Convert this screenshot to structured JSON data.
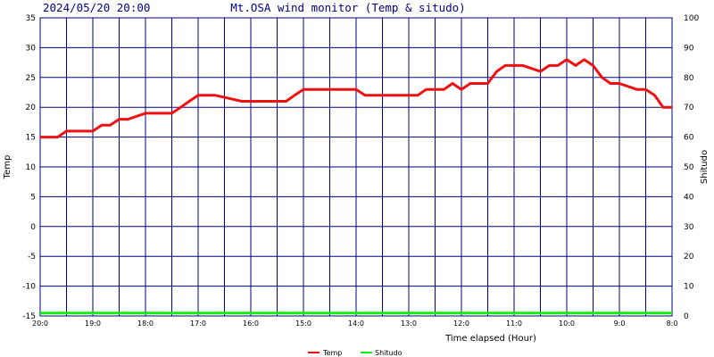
{
  "header": {
    "timestamp": "2024/05/20 20:00",
    "title": "Mt.OSA wind monitor (Temp & situdo)"
  },
  "chart_data": {
    "type": "line",
    "grid": true,
    "legend_position": "bottom",
    "xlabel": "Time elapsed (Hour)",
    "ylabel_left": "Temp",
    "ylabel_right": "Shitudo",
    "ylim_left": [
      -15,
      35
    ],
    "ylim_right": [
      0,
      100
    ],
    "yticks_left": [
      "35",
      "30",
      "25",
      "20",
      "15",
      "10",
      "5",
      "0",
      "-5",
      "-10",
      "-15"
    ],
    "yticks_right": [
      "100",
      "90",
      "80",
      "70",
      "60",
      "50",
      "40",
      "30",
      "20",
      "10",
      "0"
    ],
    "x_range_hours": [
      0,
      12
    ],
    "xticks": [
      {
        "h": 0,
        "label": "20:0"
      },
      {
        "h": 1,
        "label": "19:0"
      },
      {
        "h": 2,
        "label": "18:0"
      },
      {
        "h": 3,
        "label": "17:0"
      },
      {
        "h": 4,
        "label": "16:0"
      },
      {
        "h": 5,
        "label": "15:0"
      },
      {
        "h": 6,
        "label": "14:0"
      },
      {
        "h": 7,
        "label": "13:0"
      },
      {
        "h": 8,
        "label": "12:0"
      },
      {
        "h": 9,
        "label": "11:0"
      },
      {
        "h": 10,
        "label": "10:0"
      },
      {
        "h": 11,
        "label": "9:0"
      },
      {
        "h": 12,
        "label": "8:0"
      }
    ],
    "series": [
      {
        "name": "Temp",
        "axis": "left",
        "color": "#ee1111",
        "x": [
          0,
          0.33,
          0.5,
          1.0,
          1.17,
          1.33,
          1.5,
          1.67,
          2.0,
          2.5,
          2.67,
          2.83,
          3.0,
          3.17,
          3.33,
          3.83,
          4.0,
          4.67,
          4.83,
          5.0,
          6.0,
          6.17,
          7.17,
          7.33,
          7.67,
          7.83,
          8.0,
          8.17,
          8.5,
          8.67,
          8.83,
          9.0,
          9.17,
          9.5,
          9.67,
          9.83,
          10.0,
          10.17,
          10.33,
          10.5,
          10.67,
          10.83,
          11.0,
          11.33,
          11.5,
          11.67,
          11.83,
          12.0
        ],
        "y": [
          15,
          15,
          16,
          16,
          17,
          17,
          18,
          18,
          19,
          19,
          20,
          21,
          22,
          22,
          22,
          21,
          21,
          21,
          22,
          23,
          23,
          22,
          22,
          23,
          23,
          24,
          23,
          24,
          24,
          26,
          27,
          27,
          27,
          26,
          27,
          27,
          28,
          27,
          28,
          27,
          25,
          24,
          24,
          23,
          23,
          22,
          20,
          20
        ]
      },
      {
        "name": "Shitudo",
        "axis": "right",
        "color": "#11ee11",
        "x": [
          0,
          12
        ],
        "y": [
          1,
          1
        ]
      }
    ]
  }
}
